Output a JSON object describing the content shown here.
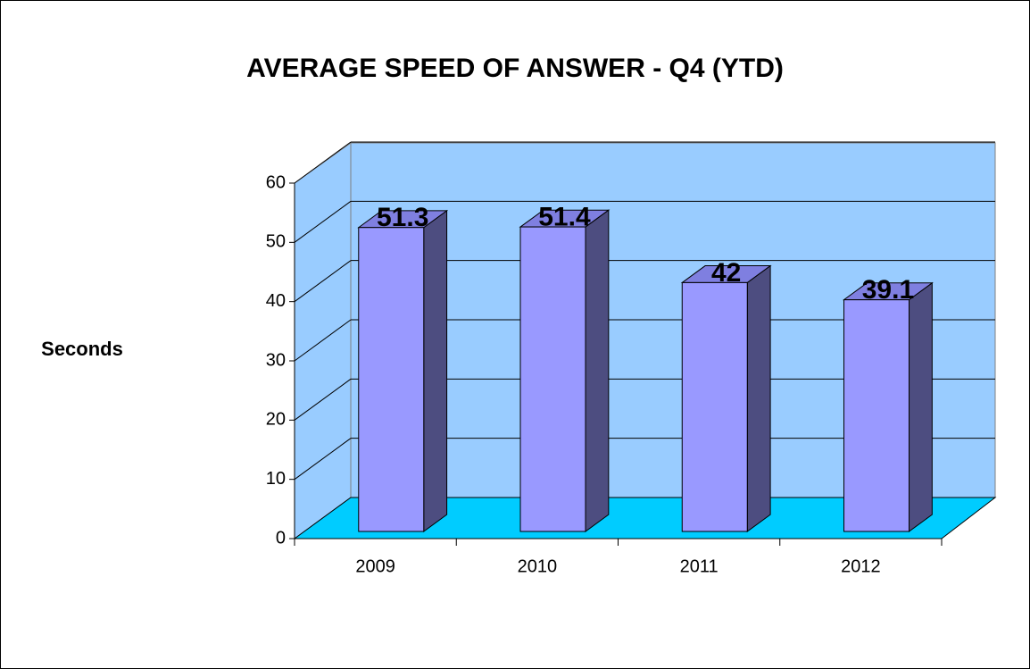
{
  "chart_data": {
    "type": "bar",
    "title": "AVERAGE SPEED OF ANSWER - Q4 (YTD)",
    "y_label": "Seconds",
    "categories": [
      "2009",
      "2010",
      "2011",
      "2012"
    ],
    "values": [
      51.3,
      51.4,
      42,
      39.1
    ],
    "color": "#9999ff",
    "ylim": [
      0,
      60
    ],
    "yticks": [
      0,
      10,
      20,
      30,
      40,
      50,
      60
    ],
    "grid": true
  }
}
